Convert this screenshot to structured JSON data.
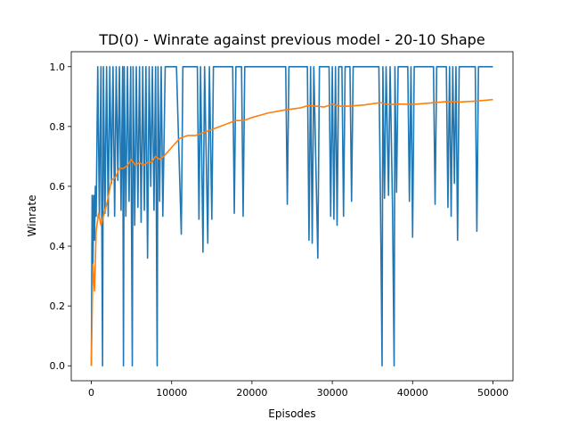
{
  "chart_data": {
    "type": "line",
    "title": "TD(0) - Winrate against previous model - 20-10 Shape",
    "xlabel": "Episodes",
    "ylabel": "Winrate",
    "xlim": [
      -2500,
      52500
    ],
    "ylim": [
      -0.05,
      1.05
    ],
    "x_ticks": [
      0,
      10000,
      20000,
      30000,
      40000,
      50000
    ],
    "x_tick_labels": [
      "0",
      "10000",
      "20000",
      "30000",
      "40000",
      "50000"
    ],
    "y_ticks": [
      0.0,
      0.2,
      0.4,
      0.6,
      0.8,
      1.0
    ],
    "y_tick_labels": [
      "0.0",
      "0.2",
      "0.4",
      "0.6",
      "0.8",
      "1.0"
    ],
    "grid": false,
    "legend": "none",
    "series": [
      {
        "color": "#1f77b4",
        "points": [
          [
            0,
            0.0
          ],
          [
            100,
            0.57
          ],
          [
            200,
            0.34
          ],
          [
            300,
            0.57
          ],
          [
            400,
            0.42
          ],
          [
            500,
            0.6
          ],
          [
            600,
            0.5
          ],
          [
            800,
            1.0
          ],
          [
            1000,
            0.5
          ],
          [
            1200,
            1.0
          ],
          [
            1400,
            0.0
          ],
          [
            1500,
            1.0
          ],
          [
            1700,
            0.51
          ],
          [
            1900,
            1.0
          ],
          [
            2100,
            0.5
          ],
          [
            2300,
            1.0
          ],
          [
            2500,
            0.61
          ],
          [
            2700,
            1.0
          ],
          [
            2900,
            0.5
          ],
          [
            3100,
            1.0
          ],
          [
            3300,
            0.62
          ],
          [
            3500,
            1.0
          ],
          [
            3700,
            0.52
          ],
          [
            3900,
            1.0
          ],
          [
            4000,
            0.0
          ],
          [
            4100,
            1.0
          ],
          [
            4300,
            0.5
          ],
          [
            4500,
            1.0
          ],
          [
            4700,
            0.55
          ],
          [
            4900,
            1.0
          ],
          [
            5100,
            0.0
          ],
          [
            5200,
            1.0
          ],
          [
            5400,
            0.47
          ],
          [
            5600,
            1.0
          ],
          [
            5800,
            0.53
          ],
          [
            6000,
            1.0
          ],
          [
            6200,
            0.48
          ],
          [
            6400,
            1.0
          ],
          [
            6600,
            0.52
          ],
          [
            6800,
            1.0
          ],
          [
            7000,
            0.36
          ],
          [
            7200,
            1.0
          ],
          [
            7400,
            0.6
          ],
          [
            7600,
            1.0
          ],
          [
            7800,
            0.52
          ],
          [
            8000,
            1.0
          ],
          [
            8200,
            0.0
          ],
          [
            8300,
            1.0
          ],
          [
            8500,
            0.55
          ],
          [
            8700,
            1.0
          ],
          [
            8900,
            0.5
          ],
          [
            9200,
            1.0
          ],
          [
            10600,
            1.0
          ],
          [
            11200,
            0.44
          ],
          [
            11400,
            1.0
          ],
          [
            13200,
            1.0
          ],
          [
            13400,
            0.49
          ],
          [
            13600,
            1.0
          ],
          [
            13900,
            0.38
          ],
          [
            14100,
            1.0
          ],
          [
            14500,
            0.41
          ],
          [
            14700,
            1.0
          ],
          [
            15000,
            0.49
          ],
          [
            15200,
            1.0
          ],
          [
            17600,
            1.0
          ],
          [
            17800,
            0.51
          ],
          [
            18000,
            1.0
          ],
          [
            18700,
            1.0
          ],
          [
            18900,
            0.5
          ],
          [
            19100,
            1.0
          ],
          [
            24200,
            1.0
          ],
          [
            24400,
            0.54
          ],
          [
            24600,
            1.0
          ],
          [
            26900,
            1.0
          ],
          [
            27100,
            0.42
          ],
          [
            27300,
            1.0
          ],
          [
            27500,
            0.41
          ],
          [
            27700,
            1.0
          ],
          [
            28200,
            0.36
          ],
          [
            28400,
            1.0
          ],
          [
            29600,
            1.0
          ],
          [
            29800,
            0.5
          ],
          [
            30000,
            1.0
          ],
          [
            30200,
            0.49
          ],
          [
            30400,
            1.0
          ],
          [
            30600,
            0.47
          ],
          [
            30800,
            1.0
          ],
          [
            31200,
            1.0
          ],
          [
            31400,
            0.5
          ],
          [
            31600,
            1.0
          ],
          [
            32200,
            1.0
          ],
          [
            32400,
            0.55
          ],
          [
            32600,
            1.0
          ],
          [
            35800,
            1.0
          ],
          [
            36000,
            0.55
          ],
          [
            36200,
            0.0
          ],
          [
            36300,
            1.0
          ],
          [
            36500,
            0.56
          ],
          [
            36700,
            1.0
          ],
          [
            37000,
            0.57
          ],
          [
            37200,
            1.0
          ],
          [
            37500,
            0.53
          ],
          [
            37700,
            0.0
          ],
          [
            37800,
            1.0
          ],
          [
            38000,
            0.58
          ],
          [
            38200,
            1.0
          ],
          [
            39400,
            1.0
          ],
          [
            39600,
            0.55
          ],
          [
            39800,
            1.0
          ],
          [
            40000,
            0.43
          ],
          [
            40200,
            1.0
          ],
          [
            42600,
            1.0
          ],
          [
            42800,
            0.54
          ],
          [
            43000,
            1.0
          ],
          [
            44200,
            1.0
          ],
          [
            44400,
            0.53
          ],
          [
            44600,
            1.0
          ],
          [
            44800,
            0.5
          ],
          [
            45000,
            1.0
          ],
          [
            45200,
            0.61
          ],
          [
            45400,
            1.0
          ],
          [
            45600,
            0.42
          ],
          [
            45800,
            1.0
          ],
          [
            47800,
            1.0
          ],
          [
            48000,
            0.45
          ],
          [
            48200,
            1.0
          ],
          [
            50000,
            1.0
          ]
        ]
      },
      {
        "color": "#ff7f0e",
        "points": [
          [
            0,
            0.0
          ],
          [
            200,
            0.34
          ],
          [
            400,
            0.25
          ],
          [
            600,
            0.45
          ],
          [
            900,
            0.51
          ],
          [
            1200,
            0.47
          ],
          [
            1500,
            0.5
          ],
          [
            2000,
            0.55
          ],
          [
            2500,
            0.62
          ],
          [
            3000,
            0.63
          ],
          [
            3500,
            0.66
          ],
          [
            4000,
            0.66
          ],
          [
            4500,
            0.67
          ],
          [
            5000,
            0.69
          ],
          [
            5500,
            0.67
          ],
          [
            6000,
            0.68
          ],
          [
            6500,
            0.67
          ],
          [
            7000,
            0.68
          ],
          [
            7500,
            0.68
          ],
          [
            8000,
            0.7
          ],
          [
            8500,
            0.69
          ],
          [
            9000,
            0.7
          ],
          [
            10000,
            0.73
          ],
          [
            11000,
            0.76
          ],
          [
            12000,
            0.77
          ],
          [
            13000,
            0.77
          ],
          [
            14000,
            0.78
          ],
          [
            15000,
            0.79
          ],
          [
            16000,
            0.8
          ],
          [
            17000,
            0.81
          ],
          [
            18000,
            0.82
          ],
          [
            19000,
            0.82
          ],
          [
            20000,
            0.83
          ],
          [
            22000,
            0.845
          ],
          [
            24000,
            0.855
          ],
          [
            26000,
            0.862
          ],
          [
            27000,
            0.87
          ],
          [
            28000,
            0.868
          ],
          [
            29000,
            0.865
          ],
          [
            30000,
            0.875
          ],
          [
            31000,
            0.868
          ],
          [
            32000,
            0.868
          ],
          [
            34000,
            0.872
          ],
          [
            36000,
            0.88
          ],
          [
            37000,
            0.873
          ],
          [
            38000,
            0.875
          ],
          [
            40000,
            0.874
          ],
          [
            42000,
            0.878
          ],
          [
            44000,
            0.883
          ],
          [
            46000,
            0.882
          ],
          [
            48000,
            0.885
          ],
          [
            50000,
            0.89
          ]
        ]
      }
    ]
  }
}
